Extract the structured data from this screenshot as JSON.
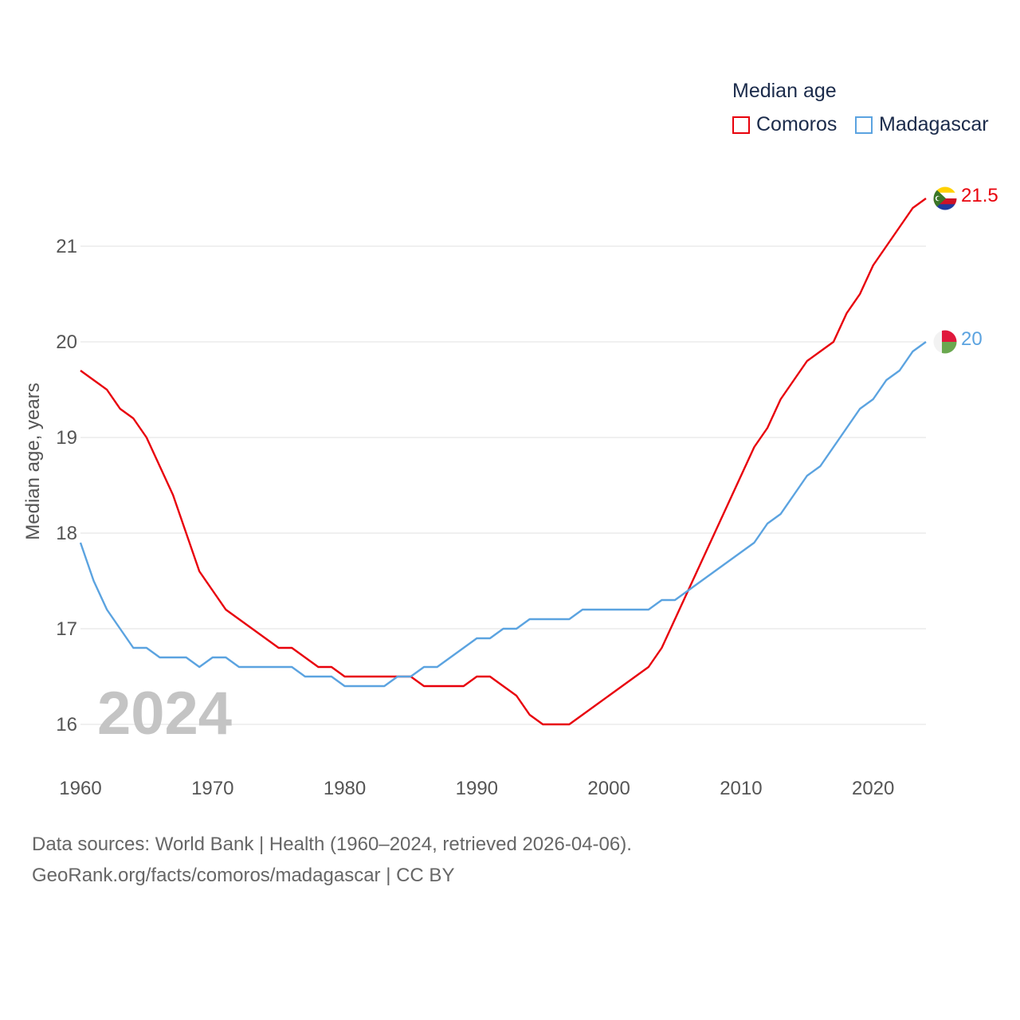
{
  "chart_data": {
    "type": "line",
    "legend_title": "Median age",
    "ylabel": "Median age, years",
    "xlabel": "",
    "year_overlay": "2024",
    "xlim": [
      1960,
      2024
    ],
    "ylim": [
      15.5,
      21.8
    ],
    "x_ticks": [
      1960,
      1970,
      1980,
      1990,
      2000,
      2010,
      2020
    ],
    "y_ticks": [
      16,
      17,
      18,
      19,
      20,
      21
    ],
    "grid": true,
    "legend_position": "top-right",
    "x": [
      1960,
      1961,
      1962,
      1963,
      1964,
      1965,
      1966,
      1967,
      1968,
      1969,
      1970,
      1971,
      1972,
      1973,
      1974,
      1975,
      1976,
      1977,
      1978,
      1979,
      1980,
      1981,
      1982,
      1983,
      1984,
      1985,
      1986,
      1987,
      1988,
      1989,
      1990,
      1991,
      1992,
      1993,
      1994,
      1995,
      1996,
      1997,
      1998,
      1999,
      2000,
      2001,
      2002,
      2003,
      2004,
      2005,
      2006,
      2007,
      2008,
      2009,
      2010,
      2011,
      2012,
      2013,
      2014,
      2015,
      2016,
      2017,
      2018,
      2019,
      2020,
      2021,
      2022,
      2023,
      2024
    ],
    "series": [
      {
        "name": "Comoros",
        "color": "#e8000b",
        "end_label": "21.5",
        "values": [
          19.7,
          19.6,
          19.5,
          19.3,
          19.2,
          19.0,
          18.7,
          18.4,
          18.0,
          17.6,
          17.4,
          17.2,
          17.1,
          17.0,
          16.9,
          16.8,
          16.8,
          16.7,
          16.6,
          16.6,
          16.5,
          16.5,
          16.5,
          16.5,
          16.5,
          16.5,
          16.4,
          16.4,
          16.4,
          16.4,
          16.5,
          16.5,
          16.4,
          16.3,
          16.1,
          16.0,
          16.0,
          16.0,
          16.1,
          16.2,
          16.3,
          16.4,
          16.5,
          16.6,
          16.8,
          17.1,
          17.4,
          17.7,
          18.0,
          18.3,
          18.6,
          18.9,
          19.1,
          19.4,
          19.6,
          19.8,
          19.9,
          20.0,
          20.3,
          20.5,
          20.8,
          21.0,
          21.2,
          21.4,
          21.5
        ]
      },
      {
        "name": "Madagascar",
        "color": "#5ba3e0",
        "end_label": "20",
        "values": [
          17.9,
          17.5,
          17.2,
          17.0,
          16.8,
          16.8,
          16.7,
          16.7,
          16.7,
          16.6,
          16.7,
          16.7,
          16.6,
          16.6,
          16.6,
          16.6,
          16.6,
          16.5,
          16.5,
          16.5,
          16.4,
          16.4,
          16.4,
          16.4,
          16.5,
          16.5,
          16.6,
          16.6,
          16.7,
          16.8,
          16.9,
          16.9,
          17.0,
          17.0,
          17.1,
          17.1,
          17.1,
          17.1,
          17.2,
          17.2,
          17.2,
          17.2,
          17.2,
          17.2,
          17.3,
          17.3,
          17.4,
          17.5,
          17.6,
          17.7,
          17.8,
          17.9,
          18.1,
          18.2,
          18.4,
          18.6,
          18.7,
          18.9,
          19.1,
          19.3,
          19.4,
          19.6,
          19.7,
          19.9,
          20.0
        ]
      }
    ]
  },
  "footer": {
    "line1": "Data sources: World Bank | Health (1960–2024, retrieved 2026-04-06).",
    "line2": "GeoRank.org/facts/comoros/madagascar | CC BY"
  },
  "flags": {
    "comoros": "comoros-flag-icon",
    "madagascar": "madagascar-flag-icon"
  }
}
